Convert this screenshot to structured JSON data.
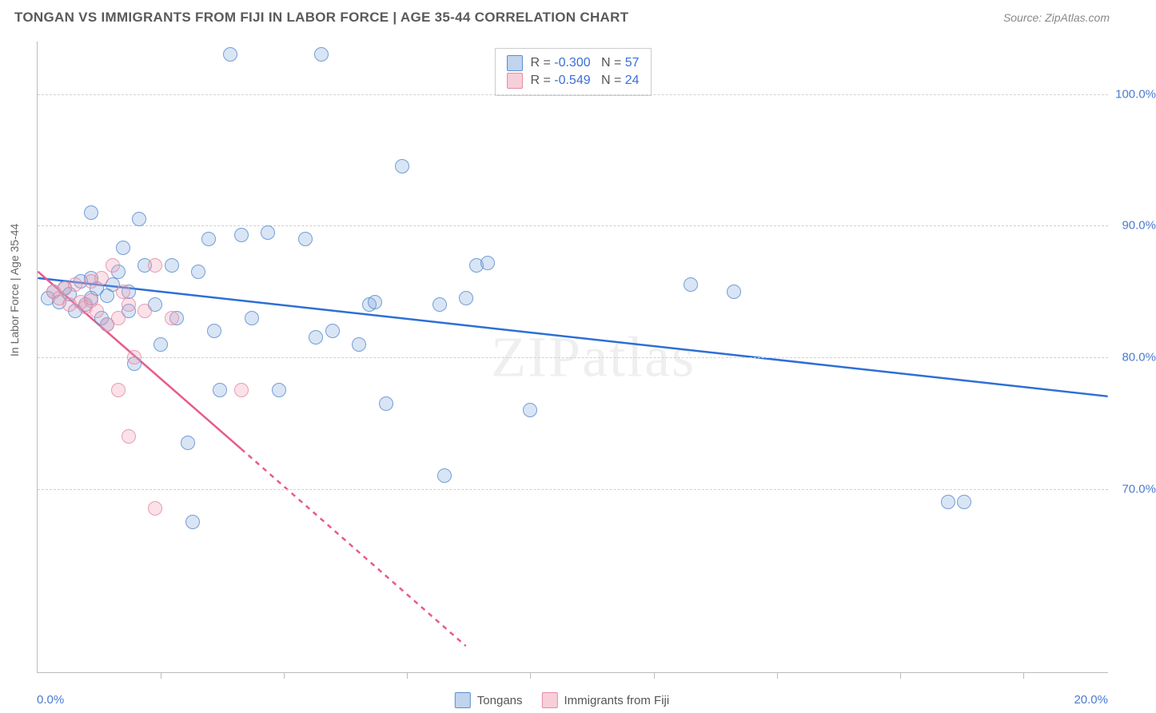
{
  "title": "TONGAN VS IMMIGRANTS FROM FIJI IN LABOR FORCE | AGE 35-44 CORRELATION CHART",
  "source": "Source: ZipAtlas.com",
  "watermark": "ZIPatlas",
  "y_axis_label": "In Labor Force | Age 35-44",
  "chart": {
    "type": "scatter",
    "background_color": "#ffffff",
    "grid_color": "#d0d0d0",
    "axis_color": "#bbbbbb",
    "tick_label_color": "#4a7bd0",
    "xlim": [
      0,
      20
    ],
    "ylim": [
      56,
      104
    ],
    "y_ticks": [
      70,
      80,
      90,
      100
    ],
    "y_tick_labels": [
      "70.0%",
      "80.0%",
      "90.0%",
      "100.0%"
    ],
    "x_ticks": [
      2.3,
      4.6,
      6.9,
      9.2,
      11.5,
      13.8,
      16.1,
      18.4
    ],
    "x_corner_left": "0.0%",
    "x_corner_right": "20.0%",
    "marker_size": 18,
    "line_width": 2.5
  },
  "series": [
    {
      "name": "Tongans",
      "color_fill": "rgba(130,170,220,0.35)",
      "color_stroke": "#5a8dd0",
      "line_color": "#2d6fd6",
      "R": "-0.300",
      "N": "57",
      "trend": {
        "x1": 0,
        "y1": 86,
        "x2": 20,
        "y2": 77
      },
      "points": [
        [
          0.2,
          84.5
        ],
        [
          0.3,
          85
        ],
        [
          0.4,
          84.2
        ],
        [
          0.5,
          85.3
        ],
        [
          0.6,
          84.8
        ],
        [
          0.7,
          83.5
        ],
        [
          0.8,
          85.8
        ],
        [
          0.9,
          84
        ],
        [
          1.0,
          84.5
        ],
        [
          1.1,
          85.2
        ],
        [
          1.0,
          91
        ],
        [
          1.2,
          83
        ],
        [
          1.3,
          82.5
        ],
        [
          1.4,
          85.5
        ],
        [
          1.5,
          86.5
        ],
        [
          1.6,
          88.3
        ],
        [
          1.7,
          83.5
        ],
        [
          1.8,
          79.5
        ],
        [
          1.9,
          90.5
        ],
        [
          2.0,
          87
        ],
        [
          2.2,
          84
        ],
        [
          2.3,
          81
        ],
        [
          2.5,
          87
        ],
        [
          2.6,
          83
        ],
        [
          2.8,
          73.5
        ],
        [
          2.9,
          67.5
        ],
        [
          3.0,
          86.5
        ],
        [
          3.2,
          89
        ],
        [
          3.3,
          82
        ],
        [
          3.4,
          77.5
        ],
        [
          3.6,
          103
        ],
        [
          3.8,
          89.3
        ],
        [
          4.0,
          83
        ],
        [
          4.3,
          89.5
        ],
        [
          4.5,
          77.5
        ],
        [
          5.0,
          89
        ],
        [
          5.2,
          81.5
        ],
        [
          5.3,
          103
        ],
        [
          5.5,
          82
        ],
        [
          6.0,
          81
        ],
        [
          6.2,
          84
        ],
        [
          6.3,
          84.2
        ],
        [
          6.5,
          76.5
        ],
        [
          6.8,
          94.5
        ],
        [
          7.5,
          84
        ],
        [
          7.6,
          71
        ],
        [
          8.0,
          84.5
        ],
        [
          8.2,
          87
        ],
        [
          8.4,
          87.2
        ],
        [
          9.2,
          76
        ],
        [
          12.2,
          85.5
        ],
        [
          13.0,
          85
        ],
        [
          17.0,
          69
        ],
        [
          17.3,
          69
        ],
        [
          1.0,
          86
        ],
        [
          1.3,
          84.7
        ],
        [
          1.7,
          85
        ]
      ]
    },
    {
      "name": "Immigrants from Fiji",
      "color_fill": "rgba(240,160,180,0.35)",
      "color_stroke": "#e58aa5",
      "line_color": "#e85a8a",
      "R": "-0.549",
      "N": "24",
      "trend_solid": {
        "x1": 0,
        "y1": 86.5,
        "x2": 3.8,
        "y2": 73
      },
      "trend_dashed": {
        "x1": 3.8,
        "y1": 73,
        "x2": 8.0,
        "y2": 58
      },
      "points": [
        [
          0.3,
          85
        ],
        [
          0.4,
          84.5
        ],
        [
          0.5,
          85.2
        ],
        [
          0.6,
          84
        ],
        [
          0.7,
          85.5
        ],
        [
          0.8,
          84.2
        ],
        [
          0.9,
          83.8
        ],
        [
          1.0,
          85.8
        ],
        [
          1.1,
          83.5
        ],
        [
          1.2,
          86
        ],
        [
          1.3,
          82.5
        ],
        [
          1.4,
          87
        ],
        [
          1.5,
          83
        ],
        [
          1.6,
          85
        ],
        [
          1.7,
          84
        ],
        [
          1.8,
          80
        ],
        [
          2.0,
          83.5
        ],
        [
          2.2,
          87
        ],
        [
          2.5,
          83
        ],
        [
          1.5,
          77.5
        ],
        [
          1.7,
          74
        ],
        [
          2.2,
          68.5
        ],
        [
          3.8,
          77.5
        ],
        [
          1.0,
          84.3
        ]
      ]
    }
  ],
  "legend_top": {
    "R_label": "R =",
    "N_label": "N ="
  },
  "legend_bottom": {
    "s1": "Tongans",
    "s2": "Immigrants from Fiji"
  }
}
